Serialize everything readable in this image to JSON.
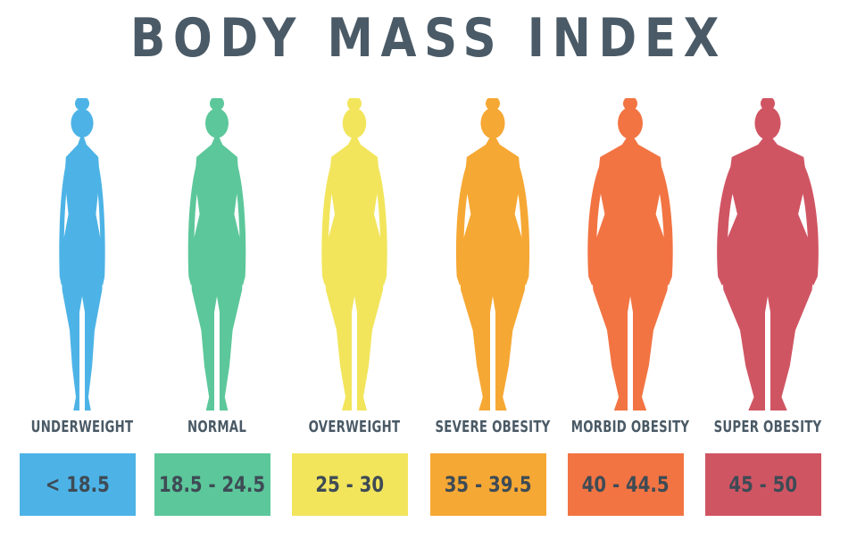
{
  "title": "BODY MASS INDEX",
  "categories": [
    {
      "label": "UNDERWEIGHT",
      "range": "< 18.5",
      "color": "#4db3e6"
    },
    {
      "label": "NORMAL",
      "range": "18.5 - 24.5",
      "color": "#5cc79a"
    },
    {
      "label": "OVERWEIGHT",
      "range": "25 - 30",
      "color": "#f2e55c"
    },
    {
      "label": "SEVERE OBESITY",
      "range": "35 - 39.5",
      "color": "#f6a834"
    },
    {
      "label": "MORBID OBESITY",
      "range": "40 - 44.5",
      "color": "#f27443"
    },
    {
      "label": "SUPER OBESITY",
      "range": "45 - 50",
      "color": "#d05563"
    }
  ],
  "figure_icon": "female-body-silhouette-icon"
}
